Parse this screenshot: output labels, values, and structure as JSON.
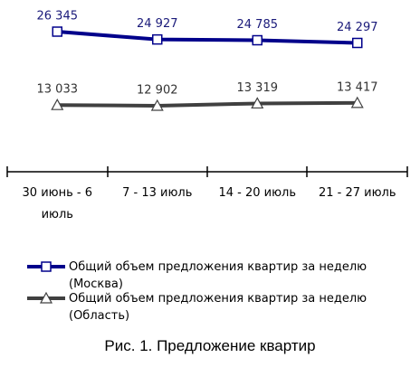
{
  "chart_data": {
    "type": "line",
    "categories": [
      "30 июнь - 6 июль",
      "7 - 13 июль",
      "14 - 20 июль",
      "21 - 27 июль"
    ],
    "series": [
      {
        "name": "Общий объем предложения квартир за неделю (Москва)",
        "color": "#00008b",
        "marker": "square",
        "values": [
          26345,
          24927,
          24785,
          24297
        ],
        "value_labels": [
          "26 345",
          "24 927",
          "24 785",
          "24 297"
        ]
      },
      {
        "name": "Общий объем предложения квартир за неделю (Область)",
        "color": "#404040",
        "marker": "triangle",
        "values": [
          13033,
          12902,
          13319,
          13417
        ],
        "value_labels": [
          "13 033",
          "12 902",
          "13 319",
          "13 417"
        ]
      }
    ],
    "caption": "Рис. 1. Предложение квартир"
  }
}
